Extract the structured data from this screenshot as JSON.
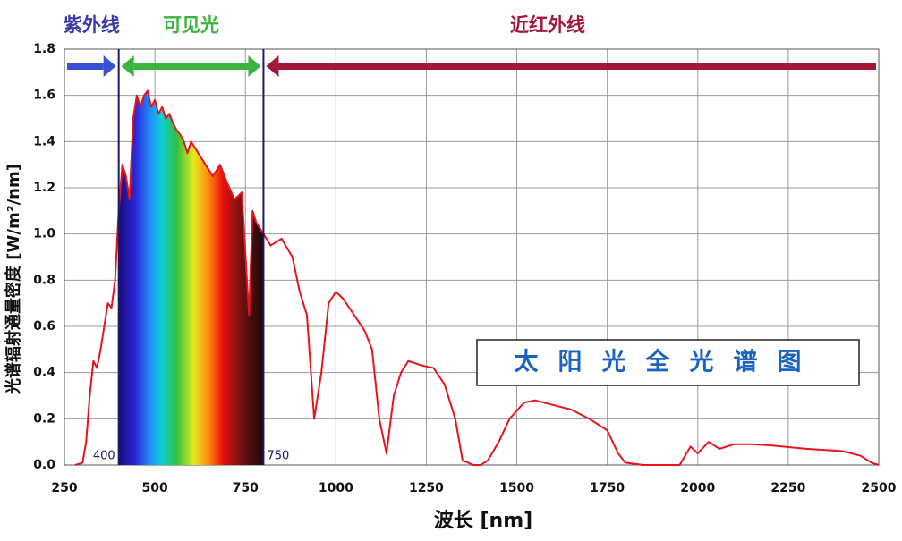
{
  "chart_data": {
    "type": "line",
    "title": "太阳光全光谱图",
    "xlabel": "波长 [nm]",
    "ylabel": "光谱辐射通量密度 [W/m²/nm]",
    "xlim": [
      250,
      2500
    ],
    "ylim": [
      0,
      1.8
    ],
    "xticks": [
      250,
      500,
      750,
      1000,
      1250,
      1500,
      1750,
      2000,
      2250,
      2500
    ],
    "yticks": [
      {
        "value": 0,
        "label": "0.0"
      },
      0.2,
      0.4,
      0.6,
      0.8,
      {
        "value": 1,
        "label": "1.0"
      },
      1.2,
      1.4,
      1.6,
      1.8
    ],
    "grid": true,
    "bands": [
      {
        "name": "紫外线",
        "from": 250,
        "to": 400,
        "color": "#3b4fd4"
      },
      {
        "name": "可见光",
        "from": 400,
        "to": 800,
        "color": "#3cb540"
      },
      {
        "name": "近红外线",
        "from": 800,
        "to": 2500,
        "color": "#a3173a"
      }
    ],
    "annotations": [
      "400",
      "750"
    ],
    "x": [
      280,
      300,
      310,
      320,
      330,
      340,
      350,
      360,
      370,
      380,
      390,
      400,
      410,
      420,
      430,
      440,
      450,
      460,
      470,
      480,
      490,
      500,
      510,
      520,
      530,
      540,
      550,
      560,
      570,
      580,
      590,
      600,
      620,
      640,
      660,
      680,
      700,
      720,
      740,
      760,
      770,
      780,
      800,
      820,
      850,
      880,
      900,
      920,
      940,
      960,
      980,
      1000,
      1020,
      1050,
      1080,
      1100,
      1120,
      1140,
      1160,
      1180,
      1200,
      1240,
      1270,
      1300,
      1330,
      1350,
      1380,
      1400,
      1420,
      1450,
      1480,
      1520,
      1550,
      1600,
      1650,
      1700,
      1750,
      1780,
      1800,
      1850,
      1950,
      1980,
      2000,
      2030,
      2060,
      2100,
      2150,
      2200,
      2300,
      2400,
      2450,
      2480,
      2500
    ],
    "series": [
      {
        "name": "光谱",
        "color": "#e8141c",
        "values": [
          0,
          0.01,
          0.1,
          0.3,
          0.45,
          0.42,
          0.5,
          0.6,
          0.7,
          0.68,
          0.8,
          1.1,
          1.3,
          1.25,
          1.15,
          1.5,
          1.6,
          1.55,
          1.6,
          1.62,
          1.55,
          1.58,
          1.52,
          1.55,
          1.5,
          1.52,
          1.48,
          1.45,
          1.43,
          1.4,
          1.35,
          1.4,
          1.35,
          1.3,
          1.25,
          1.3,
          1.22,
          1.15,
          1.18,
          0.65,
          1.1,
          1.05,
          1.0,
          0.95,
          0.98,
          0.9,
          0.75,
          0.65,
          0.2,
          0.4,
          0.7,
          0.75,
          0.72,
          0.65,
          0.58,
          0.5,
          0.2,
          0.05,
          0.3,
          0.4,
          0.45,
          0.43,
          0.42,
          0.35,
          0.2,
          0.02,
          0,
          0,
          0.02,
          0.1,
          0.2,
          0.27,
          0.28,
          0.26,
          0.24,
          0.2,
          0.15,
          0.05,
          0.01,
          0,
          0,
          0.08,
          0.05,
          0.1,
          0.07,
          0.09,
          0.09,
          0.085,
          0.07,
          0.06,
          0.04,
          0.01,
          0
        ]
      }
    ]
  }
}
